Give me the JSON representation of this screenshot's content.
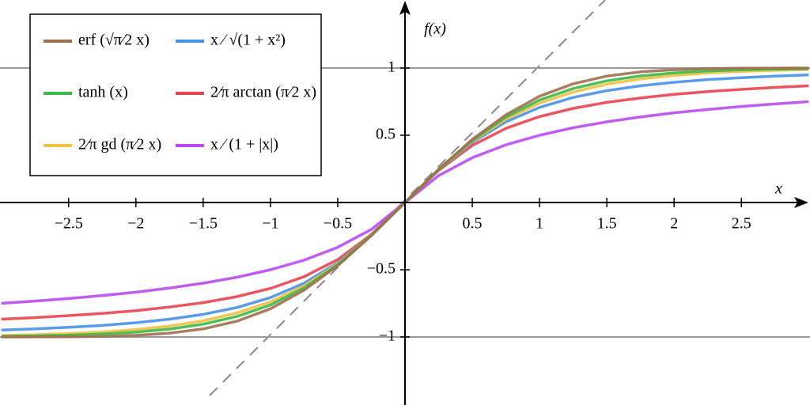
{
  "chart_data": {
    "type": "line",
    "x_label": "x",
    "y_label": "f(x)",
    "xlim": [
      -3.01,
      3.01
    ],
    "ylim": [
      -1.506,
      1.506
    ],
    "xticks": [
      {
        "value": -2.5,
        "label": "−2.5"
      },
      {
        "value": -2,
        "label": "−2"
      },
      {
        "value": -1.5,
        "label": "−1.5"
      },
      {
        "value": -1,
        "label": "−1"
      },
      {
        "value": -0.5,
        "label": "−0.5"
      },
      0.5,
      1,
      1.5,
      2,
      2.5
    ],
    "yticks": [
      {
        "value": -1,
        "label": "−1"
      },
      {
        "value": -0.5,
        "label": "−0.5"
      },
      0.5,
      1
    ],
    "reference_lines": [
      -1,
      1
    ],
    "x": [
      -3,
      -2.75,
      -2.5,
      -2.25,
      -2,
      -1.75,
      -1.5,
      -1.25,
      -1,
      -0.75,
      -0.5,
      -0.25,
      0,
      0.25,
      0.5,
      0.75,
      1,
      1.25,
      1.5,
      1.75,
      2,
      2.25,
      2.5,
      2.75,
      3
    ],
    "series": [
      {
        "name": "erf (√π⁄2 x)",
        "color": "#a0704a",
        "values": [
          -0.9998,
          -0.9995,
          -0.9984,
          -0.9955,
          -0.988,
          -0.972,
          -0.94,
          -0.883,
          -0.79,
          -0.652,
          -0.469,
          -0.246,
          0,
          0.246,
          0.469,
          0.652,
          0.79,
          0.883,
          0.94,
          0.972,
          0.988,
          0.9955,
          0.9984,
          0.9995,
          0.9998
        ]
      },
      {
        "name": "tanh (x)",
        "color": "#3cb84a",
        "values": [
          -0.995,
          -0.992,
          -0.987,
          -0.978,
          -0.964,
          -0.941,
          -0.905,
          -0.848,
          -0.762,
          -0.635,
          -0.462,
          -0.245,
          0,
          0.245,
          0.462,
          0.635,
          0.762,
          0.848,
          0.905,
          0.941,
          0.964,
          0.978,
          0.987,
          0.992,
          0.995
        ]
      },
      {
        "name": "2⁄π gd (π⁄2 x)",
        "color": "#f0c040",
        "values": [
          -0.989,
          -0.983,
          -0.975,
          -0.963,
          -0.945,
          -0.919,
          -0.88,
          -0.822,
          -0.739,
          -0.62,
          -0.456,
          -0.244,
          0,
          0.244,
          0.456,
          0.62,
          0.739,
          0.822,
          0.88,
          0.919,
          0.945,
          0.963,
          0.975,
          0.983,
          0.989
        ]
      },
      {
        "name": "x ⁄ √(1 + x²)",
        "color": "#4a90e8",
        "values": [
          -0.949,
          -0.94,
          -0.928,
          -0.914,
          -0.894,
          -0.868,
          -0.832,
          -0.781,
          -0.707,
          -0.6,
          -0.447,
          -0.243,
          0,
          0.243,
          0.447,
          0.6,
          0.707,
          0.781,
          0.832,
          0.868,
          0.894,
          0.914,
          0.928,
          0.94,
          0.949
        ]
      },
      {
        "name": "2⁄π arctan (π⁄2 x)",
        "color": "#e8434f",
        "values": [
          -0.868,
          -0.856,
          -0.841,
          -0.825,
          -0.804,
          -0.777,
          -0.745,
          -0.7,
          -0.639,
          -0.552,
          -0.424,
          -0.238,
          0,
          0.238,
          0.424,
          0.552,
          0.639,
          0.7,
          0.745,
          0.777,
          0.804,
          0.825,
          0.841,
          0.856,
          0.868
        ]
      },
      {
        "name": "x ⁄ (1 + |x|)",
        "color": "#b84af0",
        "values": [
          -0.75,
          -0.733,
          -0.714,
          -0.692,
          -0.667,
          -0.636,
          -0.6,
          -0.556,
          -0.5,
          -0.429,
          -0.333,
          -0.2,
          0,
          0.2,
          0.333,
          0.429,
          0.5,
          0.556,
          0.6,
          0.636,
          0.667,
          0.692,
          0.714,
          0.733,
          0.75
        ]
      }
    ]
  }
}
